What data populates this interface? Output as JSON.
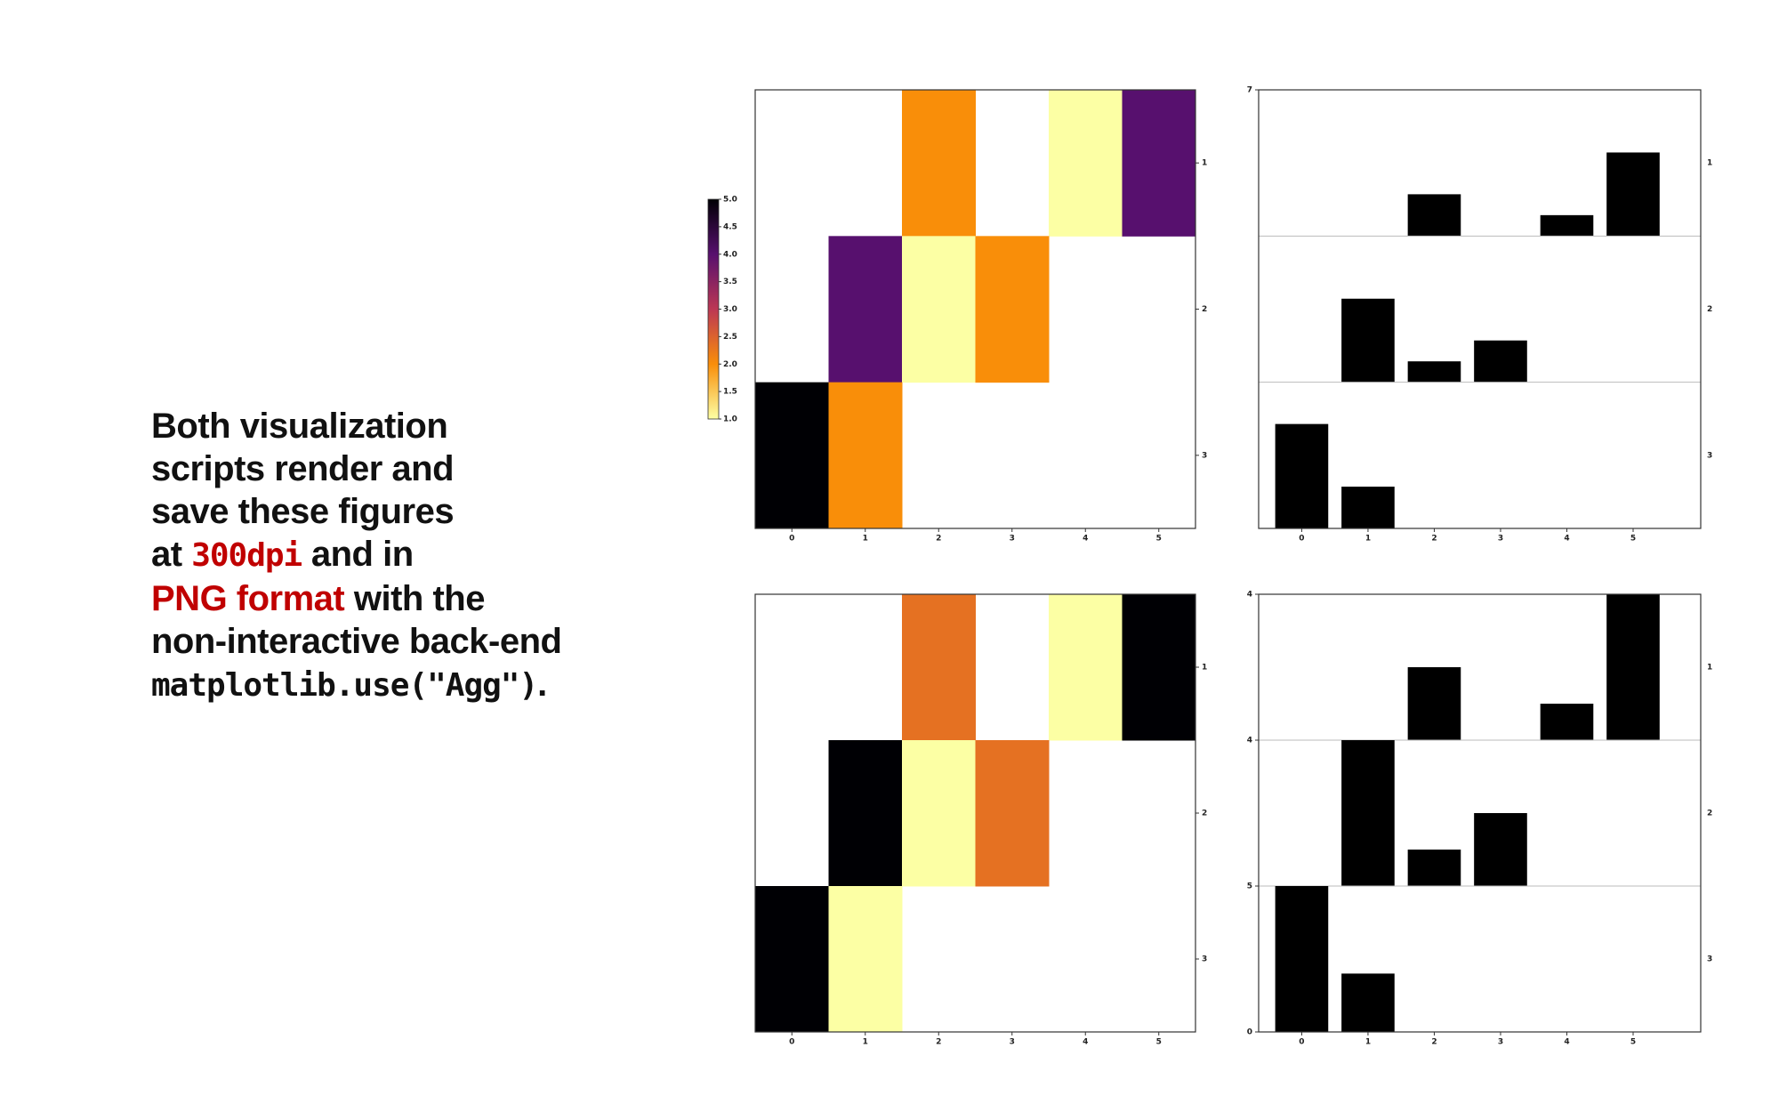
{
  "slide": {
    "lines": [
      [
        "Both visualization"
      ],
      [
        "scripts render and"
      ],
      [
        "save these figures"
      ],
      [
        "at ",
        "300dpi",
        " and in"
      ],
      [
        "PNG format",
        " with the"
      ],
      [
        "non-interactive back-end"
      ],
      [
        "matplotlib.use(\"Agg\")",
        "."
      ]
    ]
  },
  "chart_data": [
    {
      "type": "heatmap",
      "categories": [
        "0",
        "1",
        "2",
        "3",
        "4",
        "5"
      ],
      "rows": [
        "1",
        "2",
        "3"
      ],
      "z": [
        [
          null,
          null,
          2,
          null,
          1,
          4
        ],
        [
          null,
          4,
          1,
          2,
          null,
          null
        ],
        [
          5,
          2,
          null,
          null,
          null,
          null
        ]
      ],
      "colormap": [
        "#fcffa4",
        "#f98e09",
        "#bc3754",
        "#57106e",
        "#000004"
      ],
      "norm": "global",
      "colorbar": true,
      "zlim": [
        1,
        5
      ],
      "zticks": [
        {
          "value": 1,
          "label": "1.0"
        },
        {
          "value": 1.5,
          "label": "1.5"
        },
        {
          "value": 2,
          "label": "2.0"
        },
        {
          "value": 2.5,
          "label": "2.5"
        },
        {
          "value": 3,
          "label": "3.0"
        },
        {
          "value": 3.5,
          "label": "3.5"
        },
        {
          "value": 4,
          "label": "4.0"
        },
        {
          "value": 4.5,
          "label": "4.5"
        },
        {
          "value": 5,
          "label": "5.0"
        }
      ]
    },
    {
      "type": "bar",
      "categories": [
        "0",
        "1",
        "2",
        "3",
        "4",
        "5"
      ],
      "color": "#000000",
      "panels": [
        {
          "label": "1",
          "values": [
            null,
            null,
            2,
            null,
            1,
            4
          ],
          "ylim": [
            0,
            7
          ],
          "yticks": [
            7
          ]
        },
        {
          "label": "2",
          "values": [
            null,
            4,
            1,
            2,
            null,
            null
          ],
          "ylim": [
            0,
            7
          ]
        },
        {
          "label": "3",
          "values": [
            5,
            2,
            null,
            null,
            null,
            null
          ],
          "ylim": [
            0,
            7
          ]
        }
      ]
    },
    {
      "type": "heatmap",
      "categories": [
        "0",
        "1",
        "2",
        "3",
        "4",
        "5"
      ],
      "rows": [
        "1",
        "2",
        "3"
      ],
      "z": [
        [
          null,
          null,
          2,
          null,
          1,
          4
        ],
        [
          null,
          4,
          1,
          2,
          null,
          null
        ],
        [
          5,
          2,
          null,
          null,
          null,
          null
        ]
      ],
      "colormap": [
        "#fcffa4",
        "#f98e09",
        "#bc3754",
        "#57106e",
        "#000004"
      ],
      "norm": "row",
      "colorbar": false
    },
    {
      "type": "bar",
      "categories": [
        "0",
        "1",
        "2",
        "3",
        "4",
        "5"
      ],
      "color": "#000000",
      "panels": [
        {
          "label": "1",
          "values": [
            null,
            null,
            2,
            null,
            1,
            4
          ],
          "ylim": [
            0,
            4
          ],
          "yticks": [
            4
          ]
        },
        {
          "label": "2",
          "values": [
            null,
            4,
            1,
            2,
            null,
            null
          ],
          "ylim": [
            0,
            4
          ],
          "yticks": [
            4
          ]
        },
        {
          "label": "3",
          "values": [
            5,
            2,
            null,
            null,
            null,
            null
          ],
          "ylim": [
            0,
            5
          ],
          "yticks": [
            0,
            5
          ]
        }
      ]
    }
  ]
}
